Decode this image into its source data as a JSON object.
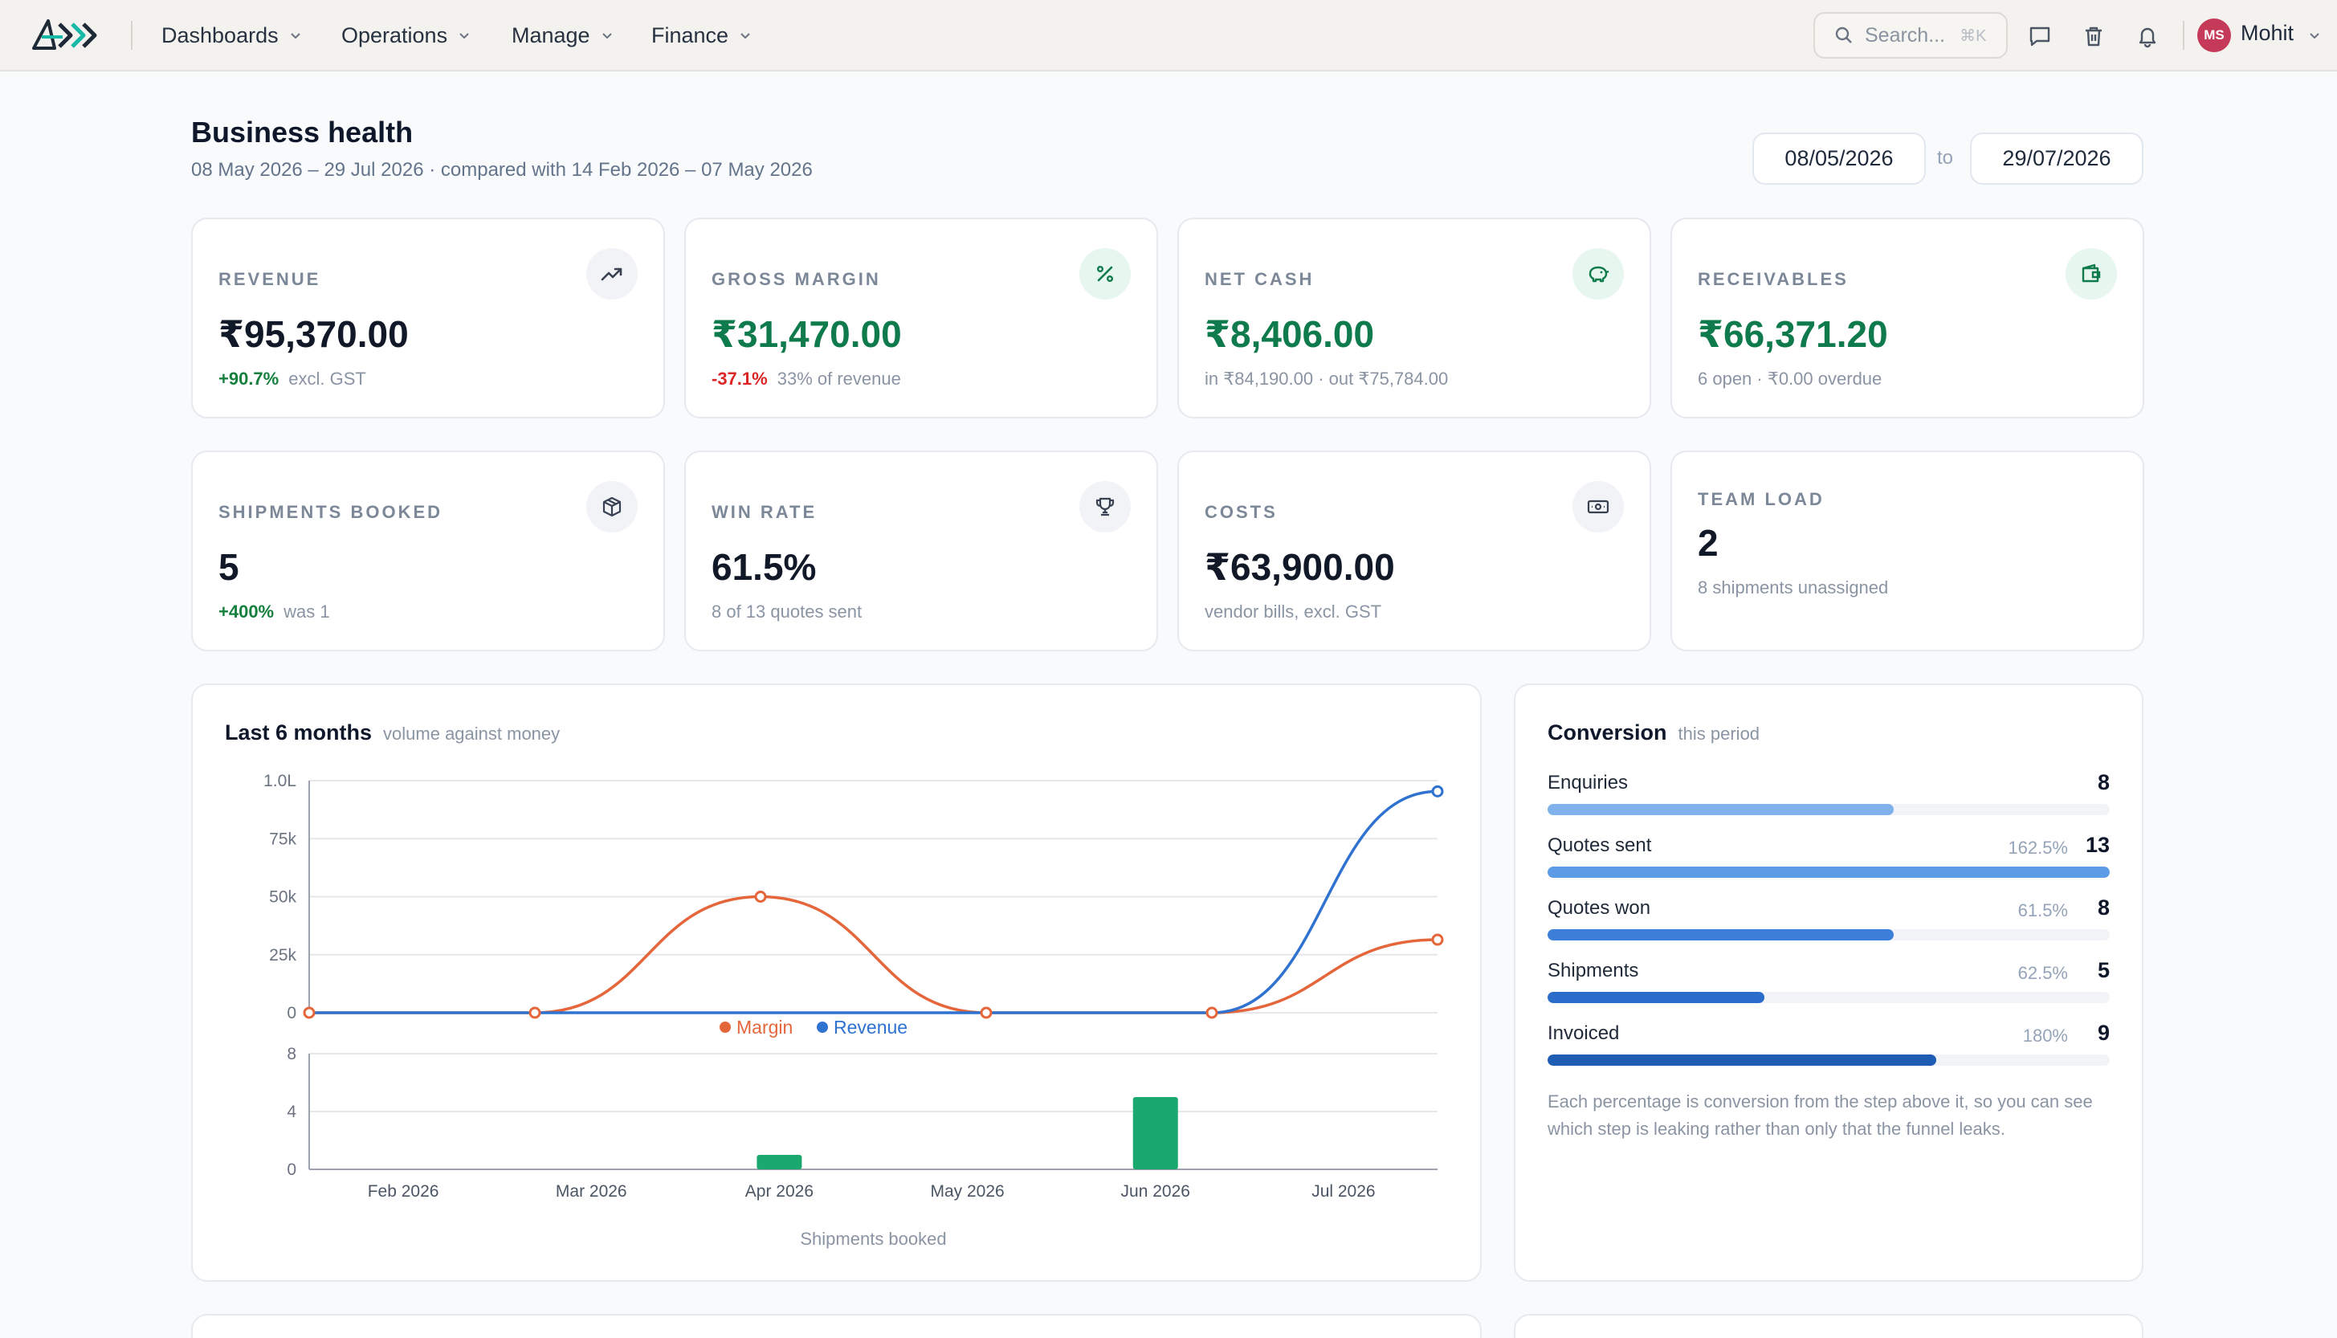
{
  "nav": {
    "items": [
      {
        "label": "Dashboards"
      },
      {
        "label": "Operations"
      },
      {
        "label": "Manage"
      },
      {
        "label": "Finance"
      }
    ],
    "search_placeholder": "Search...",
    "search_shortcut": "⌘K",
    "user_initials": "MS",
    "user_name": "Mohit",
    "avatar_color": "#c43a58"
  },
  "page": {
    "title": "Business health",
    "subtitle": "08 May 2026 – 29 Jul 2026 · compared with 14 Feb 2026 – 07 May 2026",
    "date_from": "08/05/2026",
    "date_to_word": "to",
    "date_to": "29/07/2026"
  },
  "kpis": [
    {
      "label": "REVENUE",
      "value": "₹95,370.00",
      "delta": "+90.7%",
      "delta_dir": "up",
      "note": "excl. GST",
      "icon": "trending-up-icon"
    },
    {
      "label": "GROSS MARGIN",
      "value": "₹31,470.00",
      "delta": "-37.1%",
      "delta_dir": "down",
      "note": "33% of revenue",
      "icon": "percent-icon"
    },
    {
      "label": "NET CASH",
      "value": "₹8,406.00",
      "delta": "",
      "delta_dir": "",
      "note": "in ₹84,190.00 · out ₹75,784.00",
      "icon": "piggy-bank-icon"
    },
    {
      "label": "RECEIVABLES",
      "value": "₹66,371.20",
      "delta": "",
      "delta_dir": "",
      "note": "6 open · ₹0.00 overdue",
      "icon": "wallet-icon"
    },
    {
      "label": "SHIPMENTS BOOKED",
      "value": "5",
      "delta": "+400%",
      "delta_dir": "up",
      "note": "was 1",
      "icon": "package-icon"
    },
    {
      "label": "WIN RATE",
      "value": "61.5%",
      "delta": "",
      "delta_dir": "",
      "note": "8 of 13 quotes sent",
      "icon": "trophy-icon"
    },
    {
      "label": "COSTS",
      "value": "₹63,900.00",
      "delta": "",
      "delta_dir": "",
      "note": "vendor bills, excl. GST",
      "icon": "banknote-icon"
    },
    {
      "label": "TEAM LOAD",
      "value": "2",
      "delta": "",
      "delta_dir": "",
      "note": "8 shipments unassigned",
      "icon": ""
    }
  ],
  "chart_panel": {
    "title": "Last 6 months",
    "subtitle": "volume against money"
  },
  "chart_data": {
    "type": "line",
    "categories": [
      "Feb 2026",
      "Mar 2026",
      "Apr 2026",
      "May 2026",
      "Jun 2026",
      "Jul 2026"
    ],
    "y_ticks": [
      "1.0L",
      "75k",
      "50k",
      "25k",
      "0"
    ],
    "ylim": [
      0,
      100000
    ],
    "series": [
      {
        "name": "Margin",
        "color": "#e4663a",
        "values": [
          0,
          0,
          50000,
          0,
          0,
          31470
        ]
      },
      {
        "name": "Revenue",
        "color": "#2f72d0",
        "values": [
          0,
          0,
          0,
          0,
          0,
          95370
        ]
      }
    ],
    "legend_placement": "bottom-center",
    "grid": true,
    "sub_chart": {
      "type": "bar",
      "xlabel": "Shipments booked",
      "y_ticks": [
        "8",
        "4",
        "0"
      ],
      "ylim": [
        0,
        8
      ],
      "color": "#1aa86f",
      "values": [
        0,
        0,
        1,
        0,
        5,
        0
      ]
    }
  },
  "conversion": {
    "title": "Conversion",
    "subtitle": "this period",
    "steps": [
      {
        "name": "Enquiries",
        "pct": "",
        "count": "8",
        "fill": 0.615,
        "color": "#7fb2ea"
      },
      {
        "name": "Quotes sent",
        "pct": "162.5%",
        "count": "13",
        "fill": 1.0,
        "color": "#5c9be6"
      },
      {
        "name": "Quotes won",
        "pct": "61.5%",
        "count": "8",
        "fill": 0.615,
        "color": "#3b7fd9"
      },
      {
        "name": "Shipments",
        "pct": "62.5%",
        "count": "5",
        "fill": 0.385,
        "color": "#2a6cc9"
      },
      {
        "name": "Invoiced",
        "pct": "180%",
        "count": "9",
        "fill": 0.692,
        "color": "#1f5db5"
      }
    ],
    "footnote": "Each percentage is conversion from the step above it, so you can see which step is leaking rather than only that the funnel leaks."
  }
}
